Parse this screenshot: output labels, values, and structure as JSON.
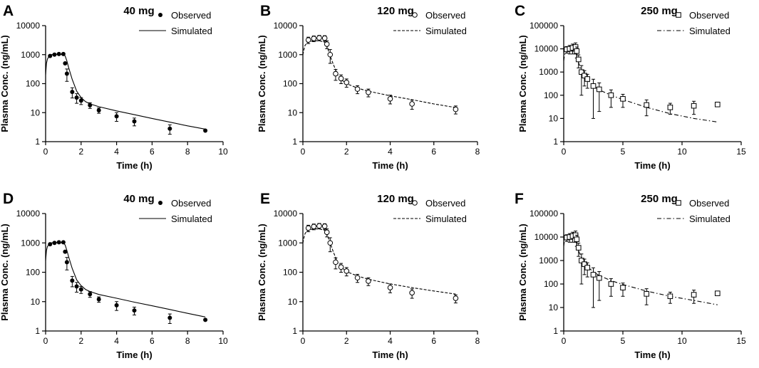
{
  "chart_data": [
    {
      "id": "A",
      "type": "scatter",
      "title": "40 mg",
      "marker": "filled-circle",
      "line_style": "solid",
      "xlabel": "Time (h)",
      "ylabel": "Plasma Conc. (ng/mL)",
      "yscale": "log",
      "xlim": [
        0,
        10
      ],
      "xticks": [
        0,
        2,
        4,
        6,
        8,
        10
      ],
      "xtick_labels": [
        "0",
        "2",
        "4",
        "6",
        "8",
        "10"
      ],
      "ylim": [
        1,
        10000
      ],
      "yticks": [
        1,
        10,
        100,
        1000,
        10000
      ],
      "ytick_labels": [
        "1",
        "10",
        "100",
        "1000",
        "10000"
      ],
      "legend": {
        "position": "top-right",
        "entries": [
          "Observed",
          "Simulated"
        ]
      },
      "observed": {
        "name": "Observed",
        "x": [
          0.25,
          0.5,
          0.75,
          1.0,
          1.1,
          1.2,
          1.5,
          1.75,
          2.0,
          2.5,
          3.0,
          4.0,
          5.0,
          7.0,
          9.0
        ],
        "y": [
          900,
          1000,
          1050,
          1050,
          500,
          220,
          52,
          33,
          26,
          18,
          12,
          7.5,
          5.0,
          2.8,
          2.4
        ],
        "err": [
          0,
          0,
          0,
          0,
          0,
          100,
          20,
          12,
          7,
          4,
          2.5,
          2.5,
          1.5,
          1.0,
          0
        ]
      },
      "simulated": {
        "name": "Simulated",
        "x": [
          0,
          0.05,
          0.1,
          0.2,
          0.3,
          0.5,
          0.75,
          1.0,
          1.1,
          1.2,
          1.3,
          1.5,
          1.75,
          2.0,
          2.25,
          2.5,
          3.0,
          4.0,
          5.0,
          6.0,
          7.0,
          8.0,
          9.0
        ],
        "y": [
          200,
          500,
          700,
          900,
          1000,
          1020,
          1030,
          1000,
          900,
          600,
          350,
          140,
          55,
          33,
          24,
          20,
          16,
          11.5,
          8.5,
          6.3,
          4.7,
          3.5,
          2.7
        ]
      }
    },
    {
      "id": "B",
      "type": "scatter",
      "title": "120 mg",
      "marker": "open-circle",
      "line_style": "dashed",
      "xlabel": "Time (h)",
      "ylabel": "Plasma Conc. (ng/mL)",
      "yscale": "log",
      "xlim": [
        0,
        8
      ],
      "xticks": [
        0,
        2,
        4,
        6,
        8
      ],
      "xtick_labels": [
        "0",
        "2",
        "4",
        "6",
        "8"
      ],
      "ylim": [
        1,
        10000
      ],
      "yticks": [
        1,
        10,
        100,
        1000,
        10000
      ],
      "ytick_labels": [
        "1",
        "10",
        "100",
        "1000",
        "10000"
      ],
      "legend": {
        "position": "top-right",
        "entries": [
          "Observed",
          "Simulated"
        ]
      },
      "observed": {
        "name": "Observed",
        "x": [
          0.25,
          0.5,
          0.75,
          1.0,
          1.1,
          1.25,
          1.5,
          1.75,
          2.0,
          2.5,
          3.0,
          4.0,
          5.0,
          7.0
        ],
        "y": [
          3200,
          3600,
          3800,
          3700,
          2300,
          1000,
          220,
          150,
          110,
          65,
          50,
          30,
          20,
          13
        ],
        "err": [
          800,
          800,
          800,
          800,
          700,
          500,
          90,
          50,
          35,
          20,
          15,
          10,
          7,
          4
        ]
      },
      "simulated": {
        "name": "Simulated",
        "x": [
          0,
          0.05,
          0.1,
          0.2,
          0.3,
          0.5,
          0.75,
          1.0,
          1.1,
          1.25,
          1.4,
          1.6,
          1.8,
          2.0,
          2.5,
          3.0,
          4.0,
          5.0,
          6.0,
          7.0
        ],
        "y": [
          1000,
          1500,
          2100,
          2600,
          2800,
          3000,
          3000,
          2700,
          2000,
          900,
          450,
          200,
          130,
          100,
          70,
          55,
          38,
          28,
          20,
          15
        ]
      }
    },
    {
      "id": "C",
      "type": "scatter",
      "title": "250 mg",
      "marker": "open-square",
      "line_style": "dash-dot",
      "xlabel": "Time (h)",
      "ylabel": "Plasma Conc. (ng/mL)",
      "yscale": "log",
      "xlim": [
        0,
        15
      ],
      "xticks": [
        0,
        5,
        10,
        15
      ],
      "xtick_labels": [
        "0",
        "5",
        "10",
        "15"
      ],
      "ylim": [
        1,
        100000
      ],
      "yticks": [
        1,
        10,
        100,
        1000,
        10000,
        100000
      ],
      "ytick_labels": [
        "1",
        "10",
        "100",
        "1000",
        "10000",
        "100000"
      ],
      "legend": {
        "position": "top-right",
        "entries": [
          "Observed",
          "Simulated"
        ]
      },
      "observed": {
        "name": "Observed",
        "x": [
          0.25,
          0.5,
          0.75,
          1.0,
          1.1,
          1.25,
          1.5,
          1.75,
          2.0,
          2.5,
          3.0,
          4.0,
          5.0,
          7.0,
          9.0,
          11.0,
          13.0
        ],
        "y": [
          9500,
          10000,
          11000,
          12000,
          8000,
          3500,
          1000,
          700,
          500,
          250,
          180,
          100,
          70,
          38,
          30,
          35,
          40
        ],
        "err": [
          3000,
          4000,
          5000,
          6000,
          4000,
          2000,
          900,
          450,
          300,
          240,
          160,
          70,
          40,
          25,
          15,
          20,
          0
        ]
      },
      "simulated": {
        "name": "Simulated",
        "x": [
          0,
          0.05,
          0.1,
          0.2,
          0.3,
          0.5,
          0.75,
          1.0,
          1.1,
          1.25,
          1.5,
          1.75,
          2.0,
          2.5,
          3.0,
          4.0,
          5.0,
          7.0,
          9.0,
          11.0,
          13.0
        ],
        "y": [
          3000,
          4500,
          6000,
          7000,
          7500,
          7800,
          8000,
          7500,
          5000,
          2500,
          1200,
          700,
          450,
          250,
          170,
          100,
          65,
          30,
          16,
          10,
          7
        ]
      }
    },
    {
      "id": "D",
      "type": "scatter",
      "title": "40 mg",
      "marker": "filled-circle",
      "line_style": "solid",
      "xlabel": "Time (h)",
      "ylabel": "Plasma Conc. (ng/mL)",
      "yscale": "log",
      "xlim": [
        0,
        10
      ],
      "xticks": [
        0,
        2,
        4,
        6,
        8,
        10
      ],
      "xtick_labels": [
        "0",
        "2",
        "4",
        "6",
        "8",
        "10"
      ],
      "ylim": [
        1,
        10000
      ],
      "yticks": [
        1,
        10,
        100,
        1000,
        10000
      ],
      "ytick_labels": [
        "1",
        "10",
        "100",
        "1000",
        "10000"
      ],
      "legend": {
        "position": "top-right",
        "entries": [
          "Observed",
          "Simulated"
        ]
      },
      "observed": {
        "name": "Observed",
        "x": [
          0.25,
          0.5,
          0.75,
          1.0,
          1.1,
          1.2,
          1.5,
          1.75,
          2.0,
          2.5,
          3.0,
          4.0,
          5.0,
          7.0,
          9.0
        ],
        "y": [
          900,
          1000,
          1050,
          1050,
          500,
          220,
          52,
          33,
          26,
          18,
          12,
          7.5,
          5.0,
          2.8,
          2.4
        ],
        "err": [
          0,
          0,
          0,
          0,
          0,
          100,
          20,
          12,
          7,
          4,
          2.5,
          2.5,
          1.5,
          1.0,
          0
        ]
      },
      "simulated": {
        "name": "Simulated",
        "x": [
          0,
          0.05,
          0.1,
          0.2,
          0.3,
          0.5,
          0.75,
          1.0,
          1.1,
          1.2,
          1.3,
          1.5,
          1.75,
          2.0,
          2.25,
          2.5,
          3.0,
          4.0,
          5.0,
          6.0,
          7.0,
          8.0,
          9.0
        ],
        "y": [
          250,
          550,
          750,
          900,
          1000,
          1030,
          1030,
          1000,
          850,
          550,
          330,
          135,
          55,
          35,
          26,
          22,
          17.5,
          13,
          9.6,
          7.2,
          5.4,
          4.0,
          3.0
        ]
      }
    },
    {
      "id": "E",
      "type": "scatter",
      "title": "120 mg",
      "marker": "open-circle",
      "line_style": "dashed",
      "xlabel": "Time (h)",
      "ylabel": "Plasma Conc. (ng/mL)",
      "yscale": "log",
      "xlim": [
        0,
        8
      ],
      "xticks": [
        0,
        2,
        4,
        6,
        8
      ],
      "xtick_labels": [
        "0",
        "2",
        "4",
        "6",
        "8"
      ],
      "ylim": [
        1,
        10000
      ],
      "yticks": [
        1,
        10,
        100,
        1000,
        10000
      ],
      "ytick_labels": [
        "1",
        "10",
        "100",
        "1000",
        "10000"
      ],
      "legend": {
        "position": "top-right",
        "entries": [
          "Observed",
          "Simulated"
        ]
      },
      "observed": {
        "name": "Observed",
        "x": [
          0.25,
          0.5,
          0.75,
          1.0,
          1.1,
          1.25,
          1.5,
          1.75,
          2.0,
          2.5,
          3.0,
          4.0,
          5.0,
          7.0
        ],
        "y": [
          3200,
          3600,
          3800,
          3700,
          2300,
          1000,
          220,
          150,
          110,
          65,
          50,
          30,
          20,
          13
        ],
        "err": [
          800,
          800,
          800,
          800,
          700,
          500,
          90,
          50,
          35,
          20,
          15,
          10,
          7,
          4
        ]
      },
      "simulated": {
        "name": "Simulated",
        "x": [
          0,
          0.05,
          0.1,
          0.2,
          0.3,
          0.5,
          0.75,
          1.0,
          1.1,
          1.25,
          1.4,
          1.6,
          1.8,
          2.0,
          2.5,
          3.0,
          4.0,
          5.0,
          6.0,
          7.0
        ],
        "y": [
          1000,
          1500,
          2100,
          2600,
          2800,
          3000,
          3000,
          2700,
          2000,
          1000,
          480,
          210,
          140,
          105,
          75,
          58,
          40,
          30,
          23,
          18
        ]
      }
    },
    {
      "id": "F",
      "type": "scatter",
      "title": "250 mg",
      "marker": "open-square",
      "line_style": "dash-dot",
      "xlabel": "Time (h)",
      "ylabel": "Plasma Conc. (ng/mL)",
      "yscale": "log",
      "xlim": [
        0,
        15
      ],
      "xticks": [
        0,
        5,
        10,
        15
      ],
      "xtick_labels": [
        "0",
        "5",
        "10",
        "15"
      ],
      "ylim": [
        1,
        100000
      ],
      "yticks": [
        1,
        10,
        100,
        1000,
        10000,
        100000
      ],
      "ytick_labels": [
        "1",
        "10",
        "100",
        "1000",
        "10000",
        "100000"
      ],
      "legend": {
        "position": "top-right",
        "entries": [
          "Observed",
          "Simulated"
        ]
      },
      "observed": {
        "name": "Observed",
        "x": [
          0.25,
          0.5,
          0.75,
          1.0,
          1.1,
          1.25,
          1.5,
          1.75,
          2.0,
          2.5,
          3.0,
          4.0,
          5.0,
          7.0,
          9.0,
          11.0,
          13.0
        ],
        "y": [
          9500,
          10000,
          11000,
          12000,
          8000,
          3500,
          1000,
          700,
          500,
          250,
          180,
          100,
          70,
          38,
          30,
          35,
          40
        ],
        "err": [
          3000,
          4000,
          5000,
          6000,
          4000,
          2000,
          900,
          450,
          300,
          240,
          160,
          70,
          40,
          25,
          15,
          20,
          0
        ]
      },
      "simulated": {
        "name": "Simulated",
        "x": [
          0,
          0.05,
          0.1,
          0.2,
          0.3,
          0.5,
          0.75,
          1.0,
          1.1,
          1.25,
          1.5,
          1.75,
          2.0,
          2.5,
          3.0,
          4.0,
          5.0,
          7.0,
          9.0,
          11.0,
          13.0
        ],
        "y": [
          4000,
          6000,
          7500,
          8000,
          8200,
          8300,
          8200,
          7500,
          5000,
          2600,
          1300,
          800,
          550,
          330,
          230,
          140,
          95,
          50,
          30,
          20,
          13
        ]
      }
    }
  ]
}
